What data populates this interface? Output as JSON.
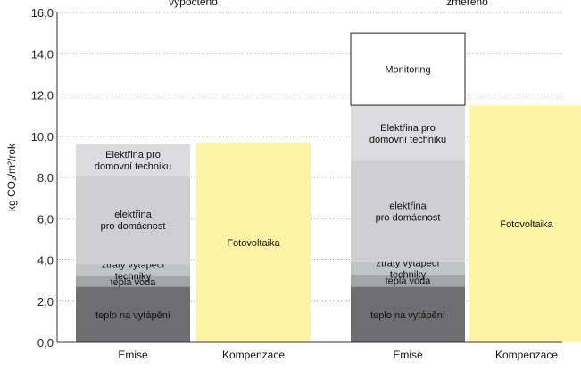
{
  "chart_data": {
    "type": "bar",
    "stacked": true,
    "ylabel": "kg CO₂/m²/rok",
    "ylim": [
      0,
      16
    ],
    "yticks": [
      "0,0",
      "2,0",
      "4,0",
      "6,0",
      "8,0",
      "10,0",
      "12,0",
      "14,0",
      "16,0"
    ],
    "grid": "horizontal-dotted",
    "groups": [
      "vypočteno",
      "změřeno"
    ],
    "categories": [
      "Emise",
      "Kompenzace",
      "Emise",
      "Kompenzace"
    ],
    "bars": [
      {
        "group": 0,
        "category": "Emise",
        "segments": [
          {
            "label": "teplo na vytápění",
            "value": 2.7,
            "color": "#6e6e70"
          },
          {
            "label": "teplá voda",
            "value": 0.5,
            "color": "#a4a5a7"
          },
          {
            "label": "ztráty vytápěcí techniky",
            "value": 0.6,
            "color": "#c2c3c5"
          },
          {
            "label": "elektřina pro domácnost",
            "value": 4.3,
            "color": "#cfcfd1"
          },
          {
            "label": "Elektřina pro domovní techniku",
            "value": 1.5,
            "color": "#dcdcde"
          }
        ]
      },
      {
        "group": 0,
        "category": "Kompenzace",
        "segments": [
          {
            "label": "Fotovoltaika",
            "value": 9.7,
            "color": "#fff4a6"
          }
        ]
      },
      {
        "group": 1,
        "category": "Emise",
        "segments": [
          {
            "label": "teplo na vytápění",
            "value": 2.7,
            "color": "#6e6e70"
          },
          {
            "label": "teplá voda",
            "value": 0.6,
            "color": "#a4a5a7"
          },
          {
            "label": "ztráty vytápěcí techniky",
            "value": 0.6,
            "color": "#c2c3c5"
          },
          {
            "label": "elektřina pro domácnost",
            "value": 4.9,
            "color": "#cfcfd1"
          },
          {
            "label": "Elektřina pro domovní techniku",
            "value": 2.7,
            "color": "#dcdcde"
          },
          {
            "label": "Monitoring",
            "value": 3.5,
            "color": "#ffffff",
            "outlined": true
          }
        ]
      },
      {
        "group": 1,
        "category": "Kompenzace",
        "segments": [
          {
            "label": "Fotovoltaika",
            "value": 11.5,
            "color": "#fff4a6"
          }
        ]
      }
    ],
    "segment_label_lines": {
      "teplo na vytápění": [
        "teplo na vytápění"
      ],
      "teplá voda": [
        "teplá voda"
      ],
      "ztráty vytápěcí techniky": [
        "ztráty vytápěcí",
        "techniky"
      ],
      "elektřina pro domácnost": [
        "elektřina",
        "pro domácnost"
      ],
      "Elektřina pro domovní techniku": [
        "Elektřina pro",
        "domovní techniku"
      ],
      "Monitoring": [
        "Monitoring"
      ],
      "Fotovoltaika": [
        "Fotovoltaika"
      ]
    }
  }
}
